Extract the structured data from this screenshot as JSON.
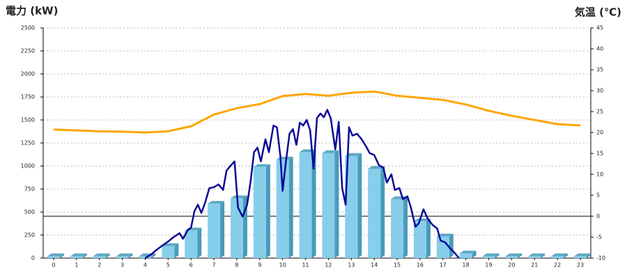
{
  "chart_data": {
    "type": "combo",
    "title_left": "電力 (kW)",
    "title_right": "気温 (℃)",
    "title_left_color": "#1565c0",
    "title_right_color": "#f08c1e",
    "categories": [
      "0",
      "1",
      "2",
      "3",
      "4",
      "5",
      "6",
      "7",
      "8",
      "9",
      "10",
      "11",
      "12",
      "13",
      "14",
      "15",
      "16",
      "17",
      "18",
      "19",
      "20",
      "21",
      "22",
      "23"
    ],
    "ylim": [
      0,
      2500
    ],
    "yticks": [
      0,
      250,
      500,
      750,
      1000,
      1250,
      1500,
      1750,
      2000,
      2250,
      2500
    ],
    "y2lim": [
      -10,
      45
    ],
    "y2ticks": [
      -10,
      -5,
      0,
      5,
      10,
      15,
      20,
      25,
      30,
      35,
      40,
      45
    ],
    "grid": true,
    "bars": {
      "color": "#87ceeb",
      "values": [
        20,
        20,
        20,
        20,
        20,
        130,
        300,
        590,
        650,
        990,
        1070,
        1150,
        1140,
        1110,
        970,
        640,
        400,
        235,
        50,
        20,
        20,
        20,
        20,
        20
      ]
    },
    "power_line": {
      "color": "#0a0a96",
      "x": [
        4,
        4.25,
        4.5,
        4.75,
        5,
        5.25,
        5.5,
        5.65,
        5.85,
        6,
        6.15,
        6.3,
        6.45,
        6.6,
        6.8,
        7,
        7.2,
        7.4,
        7.55,
        7.75,
        7.9,
        8.05,
        8.25,
        8.45,
        8.6,
        8.75,
        8.9,
        9.05,
        9.25,
        9.4,
        9.6,
        9.75,
        9.9,
        10,
        10.15,
        10.3,
        10.45,
        10.6,
        10.75,
        10.9,
        11.05,
        11.2,
        11.35,
        11.5,
        11.65,
        11.8,
        11.95,
        12.1,
        12.3,
        12.45,
        12.6,
        12.75,
        12.9,
        13.05,
        13.25,
        13.45,
        13.65,
        13.8,
        14,
        14.2,
        14.4,
        14.55,
        14.75,
        14.9,
        15.1,
        15.25,
        15.45,
        15.6,
        15.8,
        15.95,
        16.15,
        16.35,
        16.55,
        16.75,
        16.9,
        17.1,
        17.3,
        17.5,
        17.7
      ],
      "values": [
        0,
        38,
        90,
        136,
        180,
        230,
        270,
        210,
        300,
        330,
        510,
        580,
        490,
        590,
        760,
        770,
        800,
        740,
        950,
        1010,
        1050,
        550,
        450,
        580,
        830,
        1150,
        1200,
        1050,
        1290,
        1150,
        1440,
        1420,
        1110,
        730,
        1060,
        1350,
        1400,
        1230,
        1470,
        1440,
        1500,
        1390,
        970,
        1520,
        1570,
        1530,
        1610,
        1520,
        1180,
        1480,
        760,
        580,
        1420,
        1330,
        1350,
        1290,
        1210,
        1140,
        1120,
        1010,
        980,
        820,
        910,
        740,
        760,
        640,
        670,
        550,
        340,
        380,
        530,
        420,
        360,
        320,
        190,
        170,
        110,
        60,
        0
      ]
    },
    "temperature": {
      "color": "#ffa500",
      "axis": "y2",
      "values": [
        20.7,
        20.5,
        20.3,
        20.2,
        20.0,
        20.3,
        21.5,
        24.3,
        25.8,
        26.8,
        28.7,
        29.2,
        28.8,
        29.5,
        29.8,
        28.8,
        28.3,
        27.8,
        26.7,
        25.2,
        24.0,
        23.0,
        22.0,
        21.7
      ]
    }
  }
}
